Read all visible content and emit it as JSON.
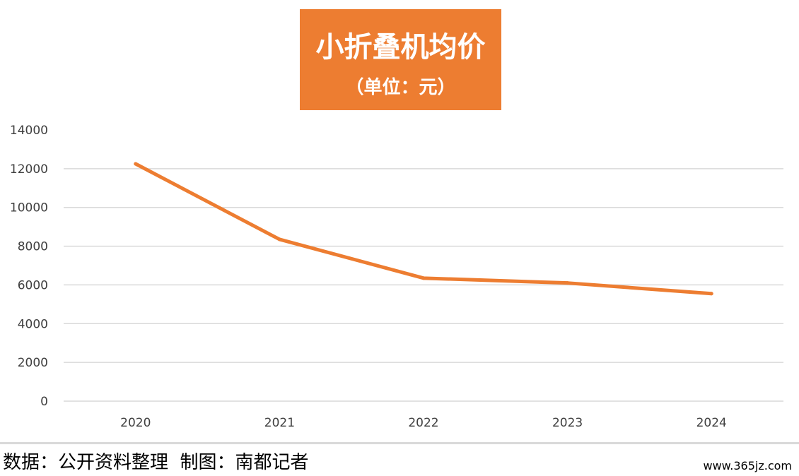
{
  "chart_data": {
    "type": "line",
    "title": "小折叠机均价",
    "subtitle": "（单位：元）",
    "x": [
      "2020",
      "2021",
      "2022",
      "2023",
      "2024"
    ],
    "series": [
      {
        "values": [
          12250,
          8350,
          6350,
          6100,
          5550
        ],
        "color": "#ED7D31"
      }
    ],
    "ylim": [
      0,
      14000
    ],
    "yticks": [
      0,
      2000,
      4000,
      6000,
      8000,
      10000,
      12000,
      14000
    ],
    "grid": true,
    "legend": "none"
  },
  "footer": {
    "text": "数据：公开资料整理  制图：南都记者"
  },
  "watermark": "www.365jz.com",
  "colors": {
    "accent": "#ED7D31",
    "grid": "#d9d9d9",
    "tick": "#404040"
  }
}
